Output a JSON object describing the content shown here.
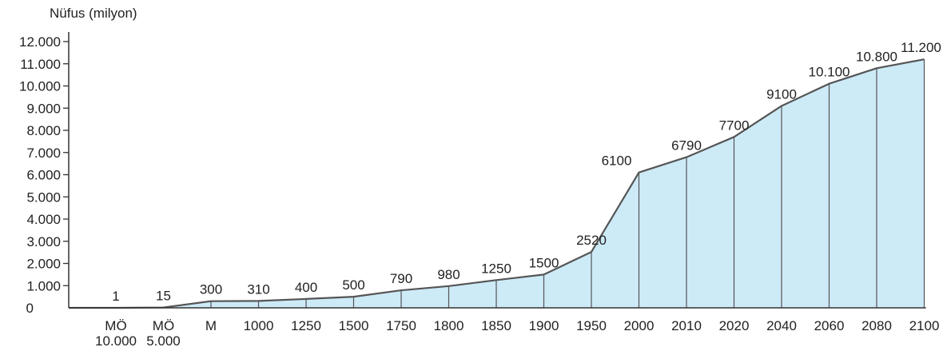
{
  "chart_data": {
    "type": "area",
    "ylabel": "Nüfus (milyon)",
    "ylim": [
      0,
      12000
    ],
    "yticks": [
      "0",
      "1.000",
      "2.000",
      "3.000",
      "4.000",
      "5.000",
      "6.000",
      "7.000",
      "8.000",
      "9.000",
      "10.000",
      "11.000",
      "12.000"
    ],
    "categories": [
      [
        "MÖ",
        "10.000"
      ],
      [
        "MÖ",
        "5.000"
      ],
      [
        "M"
      ],
      [
        "1000"
      ],
      [
        "1250"
      ],
      [
        "1500"
      ],
      [
        "1750"
      ],
      [
        "1800"
      ],
      [
        "1850"
      ],
      [
        "1900"
      ],
      [
        "1950"
      ],
      [
        "2000"
      ],
      [
        "2010"
      ],
      [
        "2020"
      ],
      [
        "2040"
      ],
      [
        "2060"
      ],
      [
        "2080"
      ],
      [
        "2100"
      ]
    ],
    "values": [
      1,
      15,
      300,
      310,
      400,
      500,
      790,
      980,
      1250,
      1500,
      2520,
      6100,
      6790,
      7700,
      9100,
      10100,
      10800,
      11200
    ],
    "data_labels": [
      "1",
      "15",
      "300",
      "310",
      "400",
      "500",
      "790",
      "980",
      "1250",
      "1500",
      "2520",
      "6100",
      "6790",
      "7700",
      "9100",
      "10.100",
      "10.800",
      "11.200"
    ],
    "grid": false,
    "colors": {
      "fill": "#cdeaf7",
      "line": "#555555",
      "axis": "#333333"
    }
  }
}
